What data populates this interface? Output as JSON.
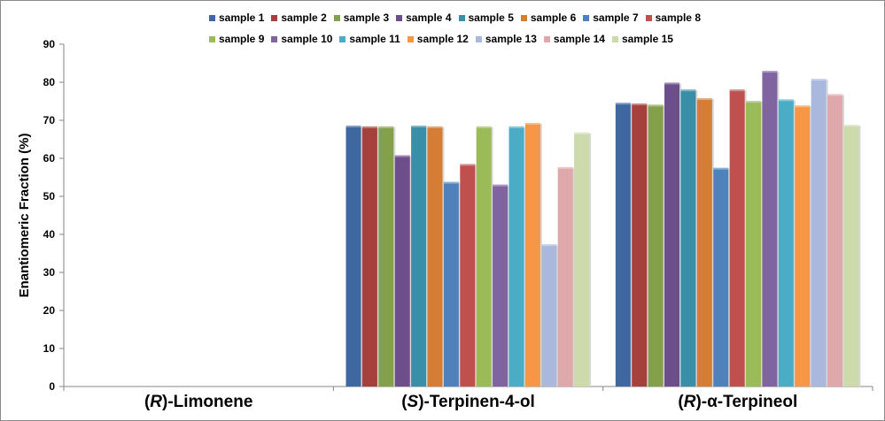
{
  "chart_data": {
    "type": "bar",
    "title": "",
    "ylabel": "Enantiomeric Fraction (%)",
    "xlabel": "",
    "ylim": [
      0,
      90
    ],
    "yticks": [
      0,
      10,
      20,
      30,
      40,
      50,
      60,
      70,
      80,
      90
    ],
    "grid": false,
    "legend_position": "top",
    "categories": [
      {
        "prefix": "(",
        "italic": "R",
        "suffix": ")-Limonene"
      },
      {
        "prefix": "(",
        "italic": "S",
        "suffix": ")-Terpinen-4-ol"
      },
      {
        "prefix": "(",
        "italic": "R",
        "suffix": ")-α-Terpineol"
      }
    ],
    "series": [
      {
        "name": "sample 1",
        "color": "#3F67A0",
        "values": [
          null,
          68.6,
          74.6
        ]
      },
      {
        "name": "sample 2",
        "color": "#A5403D",
        "values": [
          null,
          68.4,
          74.4
        ]
      },
      {
        "name": "sample 3",
        "color": "#84A04B",
        "values": [
          null,
          68.4,
          74.1
        ]
      },
      {
        "name": "sample 4",
        "color": "#6B4E8A",
        "values": [
          null,
          60.8,
          79.9
        ]
      },
      {
        "name": "sample 5",
        "color": "#3A8FA8",
        "values": [
          null,
          68.6,
          78.1
        ]
      },
      {
        "name": "sample 6",
        "color": "#D67D35",
        "values": [
          null,
          68.4,
          75.8
        ]
      },
      {
        "name": "sample 7",
        "color": "#4F81BD",
        "values": [
          null,
          53.8,
          57.5
        ]
      },
      {
        "name": "sample 8",
        "color": "#C0504D",
        "values": [
          null,
          58.5,
          78.1
        ]
      },
      {
        "name": "sample 9",
        "color": "#9BBB59",
        "values": [
          null,
          68.4,
          75.1
        ]
      },
      {
        "name": "sample 10",
        "color": "#8064A2",
        "values": [
          null,
          53.1,
          83.0
        ]
      },
      {
        "name": "sample 11",
        "color": "#4BACC6",
        "values": [
          null,
          68.4,
          75.5
        ]
      },
      {
        "name": "sample 12",
        "color": "#F79646",
        "values": [
          null,
          69.3,
          73.9
        ]
      },
      {
        "name": "sample 13",
        "color": "#AAB8DE",
        "values": [
          null,
          37.4,
          80.9
        ]
      },
      {
        "name": "sample 14",
        "color": "#DFA9AC",
        "values": [
          null,
          57.7,
          76.9
        ]
      },
      {
        "name": "sample 15",
        "color": "#CDDAAB",
        "values": [
          null,
          66.8,
          68.8
        ]
      }
    ]
  }
}
